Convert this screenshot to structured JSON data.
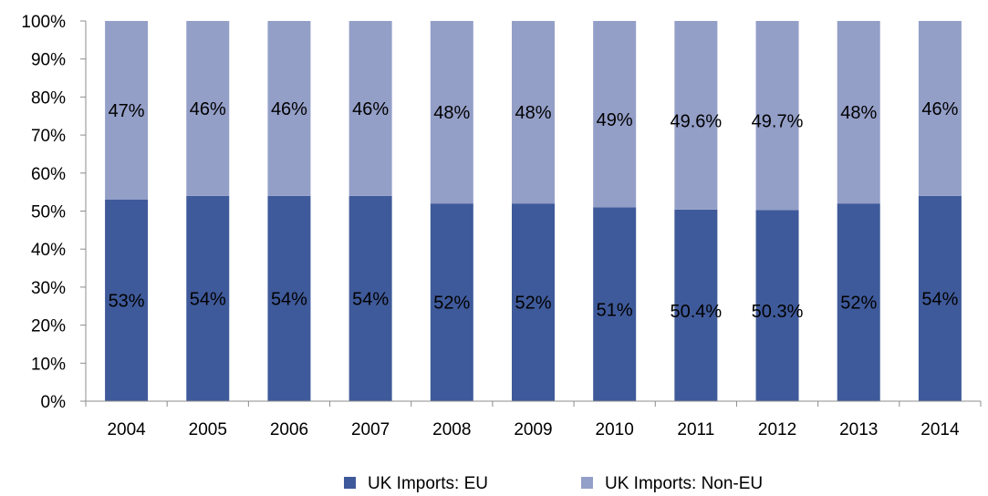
{
  "chart_data": {
    "type": "bar",
    "stacked": true,
    "percent": true,
    "categories": [
      "2004",
      "2005",
      "2006",
      "2007",
      "2008",
      "2009",
      "2010",
      "2011",
      "2012",
      "2013",
      "2014"
    ],
    "series": [
      {
        "name": "UK Imports: EU",
        "color": "#3f5a9a",
        "values": [
          53,
          54,
          54,
          54,
          52,
          52,
          51,
          50.4,
          50.3,
          52,
          54
        ],
        "labels": [
          "53%",
          "54%",
          "54%",
          "54%",
          "52%",
          "52%",
          "51%",
          "50.4%",
          "50.3%",
          "52%",
          "54%"
        ]
      },
      {
        "name": "UK Imports: Non-EU",
        "color": "#949fc8",
        "values": [
          47,
          46,
          46,
          46,
          48,
          48,
          49,
          49.6,
          49.7,
          48,
          46
        ],
        "labels": [
          "47%",
          "46%",
          "46%",
          "46%",
          "48%",
          "48%",
          "49%",
          "49.6%",
          "49.7%",
          "48%",
          "46%"
        ]
      }
    ],
    "yticks": [
      "0%",
      "10%",
      "20%",
      "30%",
      "40%",
      "50%",
      "60%",
      "70%",
      "80%",
      "90%",
      "100%"
    ],
    "ylim": [
      0,
      100
    ],
    "grid": false,
    "legend_position": "bottom"
  }
}
